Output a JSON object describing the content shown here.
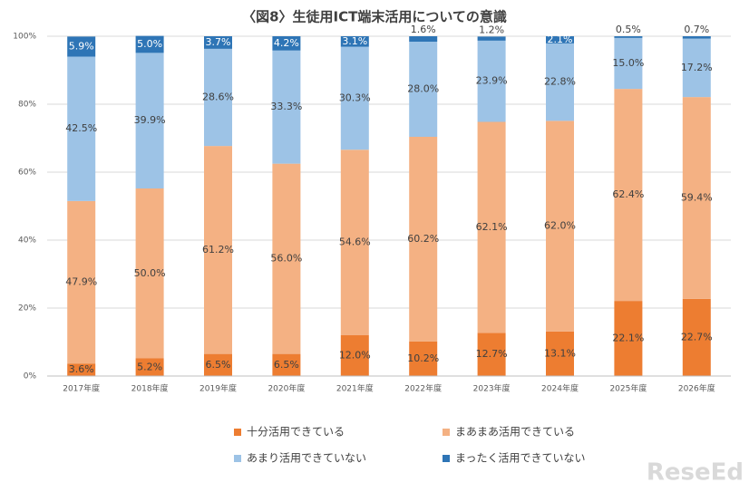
{
  "chart_data": {
    "type": "stacked_bar",
    "title": "〈図8〉生徒用ICT端末活用についての意識",
    "categories": [
      "2017年度",
      "2018年度",
      "2019年度",
      "2020年度",
      "2021年度",
      "2022年度",
      "2023年度",
      "2024年度",
      "2025年度",
      "2026年度"
    ],
    "series": [
      {
        "name": "十分活用できている",
        "color": "#ed7d31",
        "values": [
          3.6,
          5.2,
          6.5,
          6.5,
          12.0,
          10.2,
          12.7,
          13.1,
          22.1,
          22.7
        ],
        "value_labels": [
          "3.6%",
          "5.2%",
          "6.5%",
          "6.5%",
          "12.0%",
          "10.2%",
          "12.7%",
          "13.1%",
          "22.1%",
          "22.7%"
        ]
      },
      {
        "name": "まあまあ活用できている",
        "color": "#f4b183",
        "values": [
          47.9,
          50.0,
          61.2,
          56.0,
          54.6,
          60.2,
          62.1,
          62.0,
          62.4,
          59.4
        ],
        "value_labels": [
          "47.9%",
          "50.0%",
          "61.2%",
          "56.0%",
          "54.6%",
          "60.2%",
          "62.1%",
          "62.0%",
          "62.4%",
          "59.4%"
        ]
      },
      {
        "name": "あまり活用できていない",
        "color": "#9dc3e6",
        "values": [
          42.5,
          39.9,
          28.6,
          33.3,
          30.3,
          28.0,
          23.9,
          22.8,
          15.0,
          17.2
        ],
        "value_labels": [
          "42.5%",
          "39.9%",
          "28.6%",
          "33.3%",
          "30.3%",
          "28.0%",
          "23.9%",
          "22.8%",
          "15.0%",
          "17.2%"
        ]
      },
      {
        "name": "まったく活用できていない",
        "color": "#2e75b6",
        "values": [
          5.9,
          5.0,
          3.7,
          4.2,
          3.1,
          1.6,
          1.2,
          2.1,
          0.5,
          0.7
        ],
        "value_labels": [
          "5.9%",
          "5.0%",
          "3.7%",
          "4.2%",
          "3.1%",
          "1.6%",
          "1.2%",
          "2.1%",
          "0.5%",
          "0.7%"
        ]
      }
    ],
    "ylim": [
      0,
      100
    ],
    "yticks": [
      {
        "value": 0,
        "label": "0%"
      },
      {
        "value": 20,
        "label": "20%"
      },
      {
        "value": 40,
        "label": "40%"
      },
      {
        "value": 60,
        "label": "60%"
      },
      {
        "value": 80,
        "label": "80%"
      },
      {
        "value": 100,
        "label": "100%"
      }
    ],
    "grid": true,
    "legend": "bottom",
    "watermark": "ReseEd"
  }
}
